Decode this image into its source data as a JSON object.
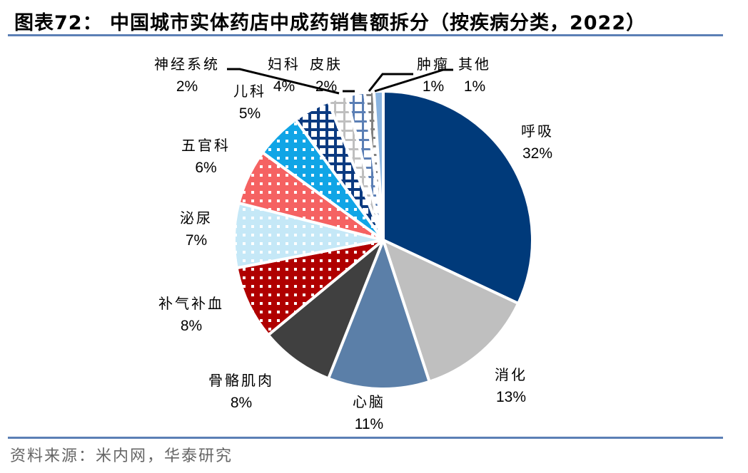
{
  "title": "图表72：  中国城市实体药店中成药销售额拆分（按疾病分类，2022）",
  "source": "资料来源：米内网，华泰研究",
  "colors": {
    "rule": "#5b7fb5"
  },
  "chart_data": {
    "type": "pie",
    "title": "中国城市实体药店中成药销售额拆分（按疾病分类，2022）",
    "start_angle": "12 o'clock, clockwise",
    "categories": [
      "呼吸",
      "消化",
      "心脑",
      "骨骼肌肉",
      "补气补血",
      "泌尿",
      "五官科",
      "儿科",
      "妇科",
      "皮肤",
      "神经系统",
      "肿瘤",
      "其他"
    ],
    "values": [
      32,
      13,
      11,
      8,
      8,
      7,
      6,
      5,
      4,
      2,
      2,
      1,
      1
    ],
    "unit": "%",
    "colors": [
      "#003a7a",
      "#bfbfbf",
      "#5b7fa8",
      "#404040",
      "#b00000",
      "#c5e8f7",
      "#f56262",
      "#10a5e6",
      "#0b3a80",
      "#bfbfbf",
      "#5b7fb5",
      "#808080",
      "#8ab4e0"
    ],
    "patterns": [
      "solid",
      "solid",
      "solid",
      "solid",
      "dots",
      "dots",
      "dots",
      "dots",
      "crosshatch",
      "grid",
      "grid",
      "dashes",
      "solid"
    ]
  },
  "labels": {
    "huxi": {
      "name": "呼吸",
      "pct": "32%"
    },
    "xiaohua": {
      "name": "消化",
      "pct": "13%"
    },
    "xinnao": {
      "name": "心脑",
      "pct": "11%"
    },
    "guge": {
      "name": "骨骼肌肉",
      "pct": "8%"
    },
    "buqi": {
      "name": "补气补血",
      "pct": "8%"
    },
    "miniao": {
      "name": "泌尿",
      "pct": "7%"
    },
    "wuguan": {
      "name": "五官科",
      "pct": "6%"
    },
    "erke": {
      "name": "儿科",
      "pct": "5%"
    },
    "fuke": {
      "name": "妇科",
      "pct": "4%"
    },
    "pifu": {
      "name": "皮肤",
      "pct": "2%"
    },
    "shenjing": {
      "name": "神经系统",
      "pct": "2%"
    },
    "zhongliu": {
      "name": "肿瘤",
      "pct": "1%"
    },
    "qita": {
      "name": "其他",
      "pct": "1%"
    }
  }
}
